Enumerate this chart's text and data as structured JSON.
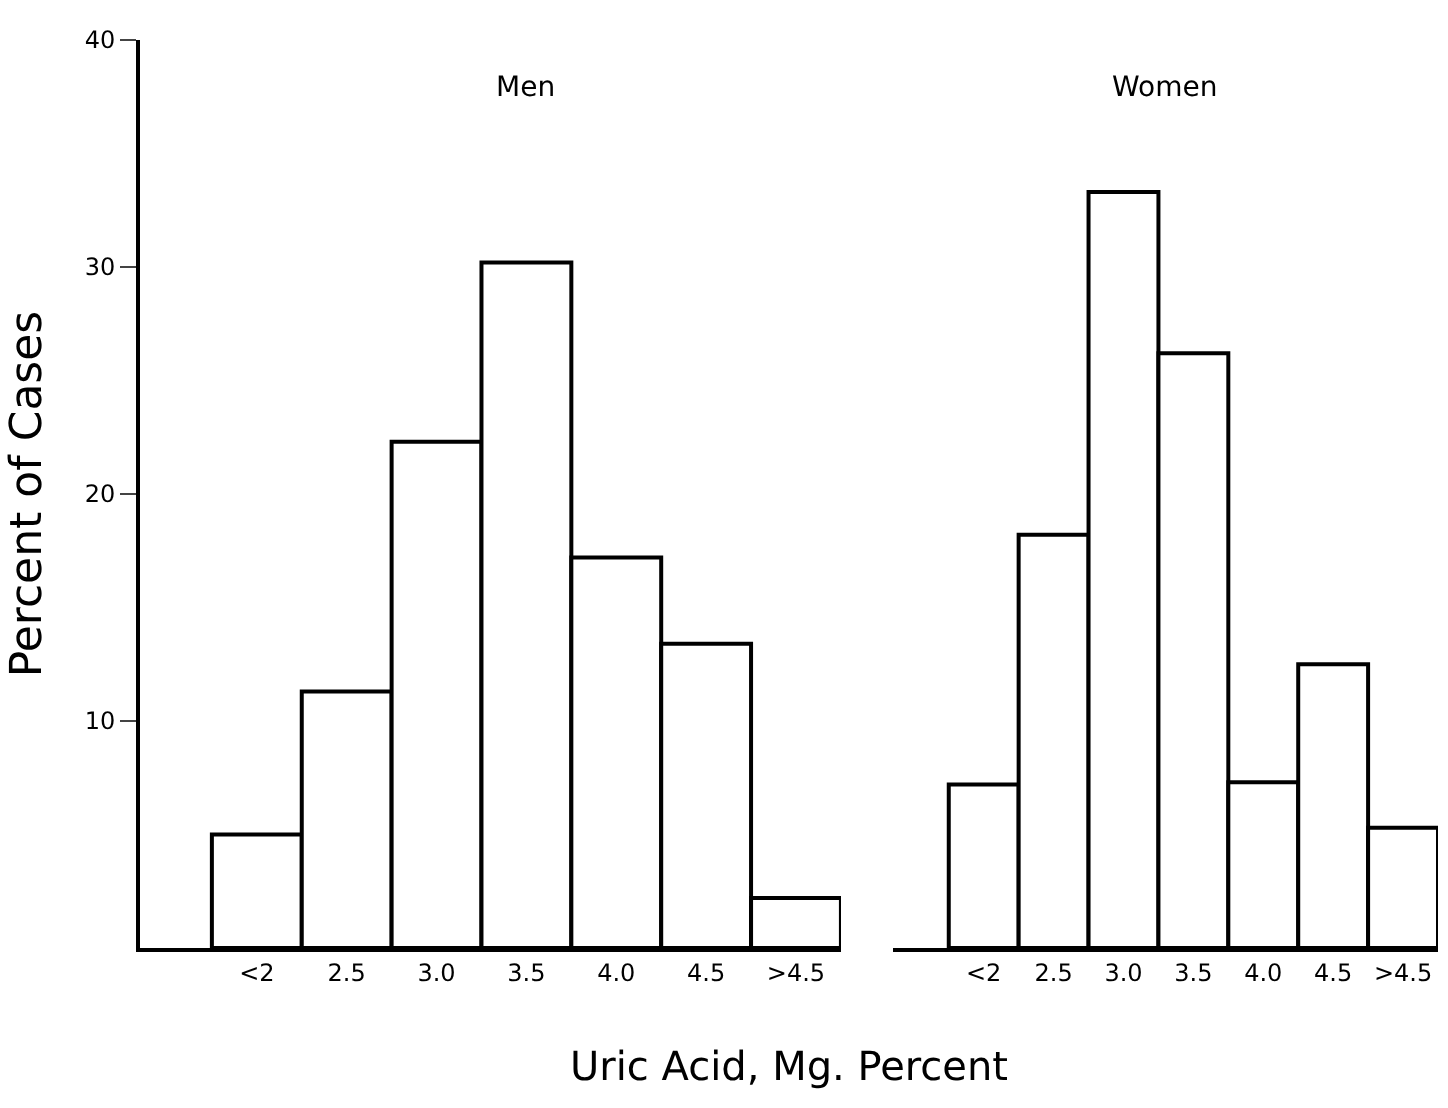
{
  "chart_data": [
    {
      "type": "bar",
      "title": "Men",
      "ylabel": "Percent of Cases",
      "xlabel": "Uric Acid, Mg. Percent",
      "categories": [
        "<2",
        "2.5",
        "3.0",
        "3.5",
        "4.0",
        "4.5",
        ">4.5"
      ],
      "values": [
        5,
        11.3,
        22.3,
        30.2,
        17.2,
        13.4,
        2.2
      ],
      "color": "#ffffff",
      "ylim": [
        0,
        40
      ],
      "yticks": [
        10,
        20,
        30,
        40
      ]
    },
    {
      "type": "bar",
      "title": "Women",
      "categories": [
        "<2",
        "2.5",
        "3.0",
        "3.5",
        "4.0",
        "4.5",
        ">4.5"
      ],
      "values": [
        7.2,
        18.2,
        33.3,
        26.2,
        7.3,
        12.5,
        5.3
      ],
      "color": "#ffffff",
      "ylim": [
        0,
        40
      ],
      "tick_labels": "x"
    }
  ]
}
